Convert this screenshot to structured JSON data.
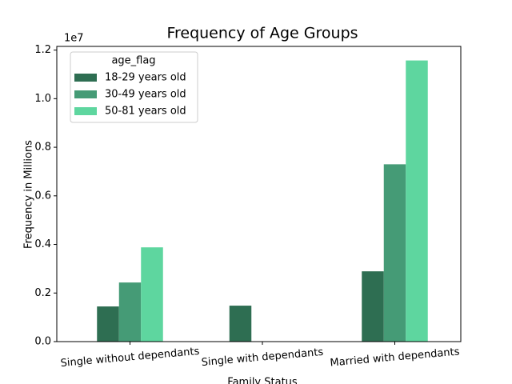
{
  "chart_data": {
    "type": "bar",
    "title": "Frequency of Age Groups",
    "x_label": "Family Status",
    "y_label": "Frequency in Millions",
    "y_offset_label": "1e7",
    "categories": [
      "Single without dependants",
      "Single with dependants",
      "Married with dependants"
    ],
    "legend_title": "age_flag",
    "legend_position": "upper left",
    "series": [
      {
        "name": "18-29 years old",
        "color": "#2e6e52",
        "values": [
          1447000,
          1480000,
          2893000
        ]
      },
      {
        "name": "30-49 years old",
        "color": "#459b76",
        "values": [
          2433000,
          null,
          7299000
        ]
      },
      {
        "name": "50-81 years old",
        "color": "#5ed69f",
        "values": [
          3880000,
          null,
          11573000
        ]
      }
    ],
    "ylim": [
      0,
      12152000
    ],
    "yticks": [
      {
        "value": 0,
        "label": "0.0"
      },
      {
        "value": 2000000,
        "label": "0.2"
      },
      {
        "value": 4000000,
        "label": "0.4"
      },
      {
        "value": 6000000,
        "label": "0.6"
      },
      {
        "value": 8000000,
        "label": "0.8"
      },
      {
        "value": 10000000,
        "label": "1.0"
      },
      {
        "value": 12000000,
        "label": "1.2"
      }
    ],
    "grid": false
  }
}
